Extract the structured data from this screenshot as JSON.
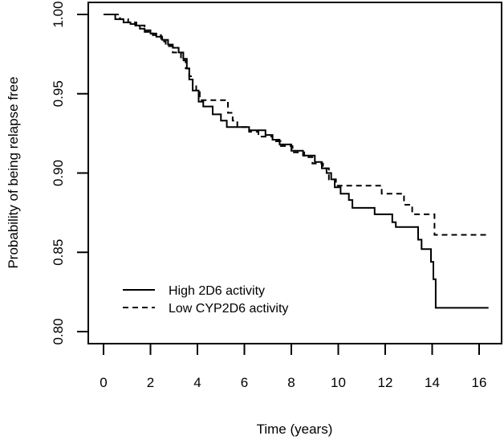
{
  "figure": {
    "background": "#ffffff",
    "axis_color": "#000000",
    "curve_color": "#000000"
  },
  "chart_data": {
    "type": "line",
    "subtype": "kaplan-meier-step",
    "title": "",
    "xlabel": "Time (years)",
    "ylabel": "Probability of being relapse free",
    "xlim": [
      0,
      16.5
    ],
    "ylim": [
      0.8,
      1.0
    ],
    "x_ticks": [
      0,
      2,
      4,
      6,
      8,
      10,
      12,
      14,
      16
    ],
    "x_tick_labels": [
      "0",
      "2",
      "4",
      "6",
      "8",
      "10",
      "12",
      "14",
      "16"
    ],
    "y_ticks": [
      0.8,
      0.85,
      0.9,
      0.95,
      1.0
    ],
    "y_tick_labels": [
      "0.80",
      "0.85",
      "0.90",
      "0.95",
      "1.00"
    ],
    "grid": false,
    "legend": {
      "position": "inside-bottom-left",
      "entries": [
        {
          "label": "High 2D6 activity",
          "line_style": "solid",
          "color": "#000000"
        },
        {
          "label": "Low CYP2D6 activity",
          "line_style": "dashed",
          "color": "#000000"
        }
      ]
    },
    "series": [
      {
        "name": "High 2D6 activity",
        "style": "solid",
        "color": "#000000",
        "points": [
          [
            0,
            1.0
          ],
          [
            0.5,
            0.997
          ],
          [
            0.85,
            0.995
          ],
          [
            1.15,
            0.994
          ],
          [
            1.35,
            0.993
          ],
          [
            1.55,
            0.991
          ],
          [
            1.75,
            0.99
          ],
          [
            2.0,
            0.988
          ],
          [
            2.25,
            0.986
          ],
          [
            2.5,
            0.984
          ],
          [
            2.75,
            0.981
          ],
          [
            2.95,
            0.979
          ],
          [
            3.2,
            0.976
          ],
          [
            3.4,
            0.972
          ],
          [
            3.55,
            0.966
          ],
          [
            3.65,
            0.959
          ],
          [
            3.8,
            0.952
          ],
          [
            4.05,
            0.945
          ],
          [
            4.25,
            0.942
          ],
          [
            4.65,
            0.937
          ],
          [
            5.0,
            0.933
          ],
          [
            5.25,
            0.929
          ],
          [
            6.2,
            0.927
          ],
          [
            6.9,
            0.924
          ],
          [
            7.2,
            0.921
          ],
          [
            7.5,
            0.918
          ],
          [
            8.0,
            0.914
          ],
          [
            8.5,
            0.911
          ],
          [
            9.0,
            0.907
          ],
          [
            9.3,
            0.903
          ],
          [
            9.5,
            0.9
          ],
          [
            9.7,
            0.896
          ],
          [
            9.85,
            0.891
          ],
          [
            10.1,
            0.887
          ],
          [
            10.45,
            0.883
          ],
          [
            10.6,
            0.878
          ],
          [
            11.55,
            0.874
          ],
          [
            12.3,
            0.869
          ],
          [
            12.45,
            0.866
          ],
          [
            13.4,
            0.858
          ],
          [
            13.55,
            0.852
          ],
          [
            13.95,
            0.844
          ],
          [
            14.05,
            0.833
          ],
          [
            14.15,
            0.815
          ],
          [
            16.4,
            0.815
          ]
        ]
      },
      {
        "name": "Low CYP2D6 activity",
        "style": "dashed",
        "color": "#000000",
        "points": [
          [
            0,
            1.0
          ],
          [
            0.7,
            0.997
          ],
          [
            1.05,
            0.995
          ],
          [
            1.4,
            0.993
          ],
          [
            1.75,
            0.989
          ],
          [
            2.1,
            0.987
          ],
          [
            2.45,
            0.983
          ],
          [
            2.65,
            0.98
          ],
          [
            2.95,
            0.976
          ],
          [
            3.3,
            0.971
          ],
          [
            3.5,
            0.966
          ],
          [
            3.65,
            0.961
          ],
          [
            3.8,
            0.956
          ],
          [
            3.95,
            0.951
          ],
          [
            4.1,
            0.946
          ],
          [
            5.3,
            0.938
          ],
          [
            5.5,
            0.933
          ],
          [
            5.7,
            0.929
          ],
          [
            6.2,
            0.926
          ],
          [
            6.6,
            0.923
          ],
          [
            7.2,
            0.92
          ],
          [
            7.55,
            0.917
          ],
          [
            8.05,
            0.913
          ],
          [
            8.55,
            0.91
          ],
          [
            8.9,
            0.906
          ],
          [
            9.35,
            0.903
          ],
          [
            9.6,
            0.896
          ],
          [
            9.9,
            0.892
          ],
          [
            11.85,
            0.887
          ],
          [
            12.8,
            0.88
          ],
          [
            13.15,
            0.874
          ],
          [
            14.1,
            0.861
          ],
          [
            16.35,
            0.861
          ]
        ]
      }
    ]
  }
}
